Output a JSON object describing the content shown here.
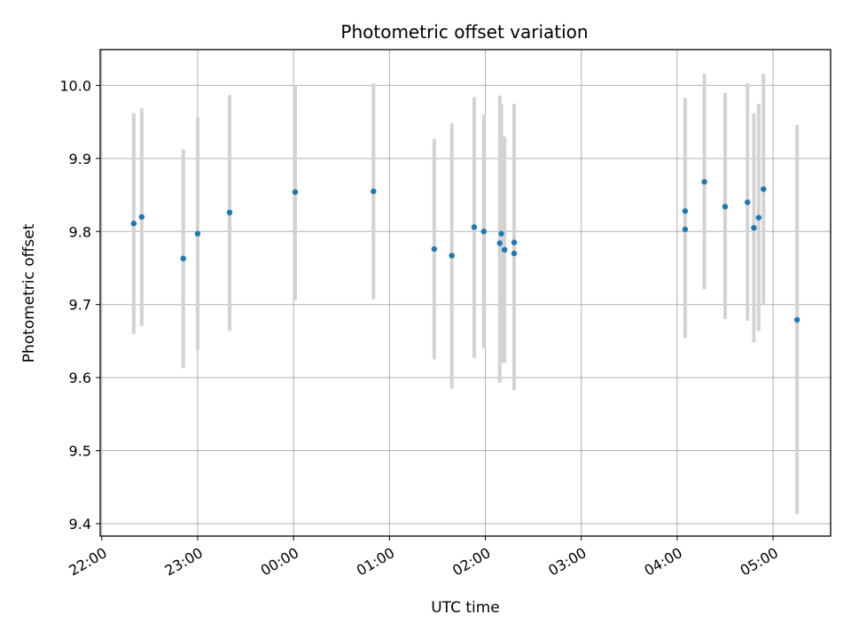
{
  "chart_data": {
    "type": "scatter",
    "title": "Photometric offset variation",
    "xlabel": "UTC time",
    "ylabel": "Photometric offset",
    "x_unit": "UTC time (HH:MM)",
    "xlim": [
      "21:59",
      "05:36"
    ],
    "ylim": [
      9.383,
      10.049
    ],
    "x_ticks": [
      "22:00",
      "23:00",
      "00:00",
      "01:00",
      "02:00",
      "03:00",
      "04:00",
      "05:00"
    ],
    "y_ticks": [
      "9.4",
      "9.5",
      "9.6",
      "9.7",
      "9.8",
      "9.9",
      "10.0"
    ],
    "grid": true,
    "error_bar_color": "#d3d3d3",
    "marker_color": "#1f77b4",
    "series": [
      {
        "points": [
          {
            "x": "22:20",
            "y": 9.811,
            "ylow": 9.66,
            "yhigh": 9.962
          },
          {
            "x": "22:25",
            "y": 9.82,
            "ylow": 9.671,
            "yhigh": 9.969
          },
          {
            "x": "22:51",
            "y": 9.763,
            "ylow": 9.613,
            "yhigh": 9.912
          },
          {
            "x": "23:00",
            "y": 9.797,
            "ylow": 9.638,
            "yhigh": 9.957
          },
          {
            "x": "23:20",
            "y": 9.826,
            "ylow": 9.664,
            "yhigh": 9.987
          },
          {
            "x": "00:01",
            "y": 9.854,
            "ylow": 9.706,
            "yhigh": 10.0
          },
          {
            "x": "00:50",
            "y": 9.855,
            "ylow": 9.707,
            "yhigh": 10.003
          },
          {
            "x": "01:28",
            "y": 9.776,
            "ylow": 9.625,
            "yhigh": 9.927
          },
          {
            "x": "01:39",
            "y": 9.767,
            "ylow": 9.585,
            "yhigh": 9.948
          },
          {
            "x": "01:53",
            "y": 9.806,
            "ylow": 9.627,
            "yhigh": 9.984
          },
          {
            "x": "01:59",
            "y": 9.8,
            "ylow": 9.64,
            "yhigh": 9.96
          },
          {
            "x": "02:09",
            "y": 9.784,
            "ylow": 9.593,
            "yhigh": 9.986
          },
          {
            "x": "02:10",
            "y": 9.797,
            "ylow": 9.62,
            "yhigh": 9.975
          },
          {
            "x": "02:12",
            "y": 9.775,
            "ylow": 9.62,
            "yhigh": 9.93
          },
          {
            "x": "02:18",
            "y": 9.785,
            "ylow": 9.583,
            "yhigh": 9.975
          },
          {
            "x": "02:18",
            "y": 9.77,
            "ylow": 9.583,
            "yhigh": 9.975
          },
          {
            "x": "04:05",
            "y": 9.803,
            "ylow": 9.654,
            "yhigh": 9.953
          },
          {
            "x": "04:05",
            "y": 9.828,
            "ylow": 9.672,
            "yhigh": 9.983
          },
          {
            "x": "04:17",
            "y": 9.868,
            "ylow": 9.721,
            "yhigh": 10.016
          },
          {
            "x": "04:30",
            "y": 9.834,
            "ylow": 9.68,
            "yhigh": 9.99
          },
          {
            "x": "04:44",
            "y": 9.84,
            "ylow": 9.678,
            "yhigh": 10.003
          },
          {
            "x": "04:48",
            "y": 9.805,
            "ylow": 9.648,
            "yhigh": 9.962
          },
          {
            "x": "04:51",
            "y": 9.819,
            "ylow": 9.664,
            "yhigh": 9.975
          },
          {
            "x": "04:54",
            "y": 9.858,
            "ylow": 9.7,
            "yhigh": 10.016
          },
          {
            "x": "05:15",
            "y": 9.679,
            "ylow": 9.413,
            "yhigh": 9.946
          }
        ]
      }
    ]
  }
}
